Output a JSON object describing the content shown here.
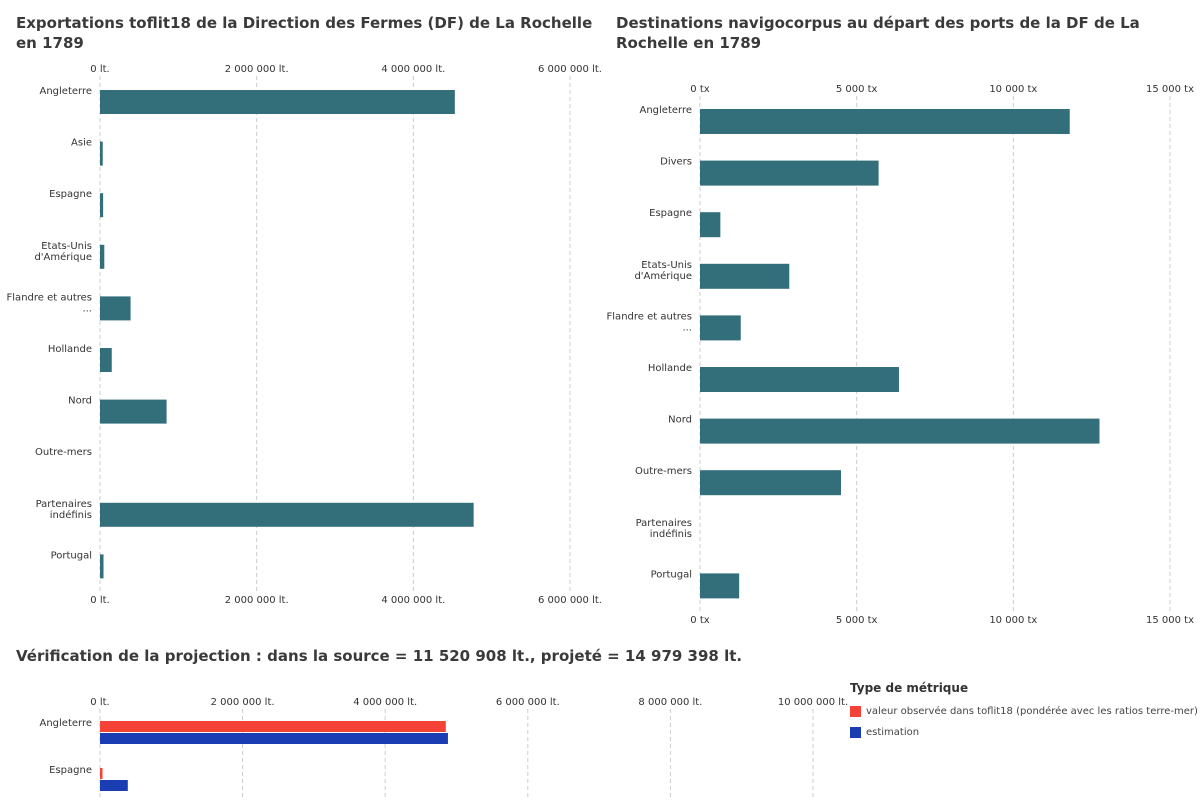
{
  "titles": {
    "chart1": "Exportations toflit18 de la Direction des Fermes (DF) de La Rochelle en 1789",
    "chart2": "Destinations navigocorpus au départ des ports de la DF de La Rochelle en 1789",
    "chart3": "Vérification de la projection : dans la source = 11 520 908 lt., projeté = 14 979 398 lt."
  },
  "colors": {
    "bar": "#336e7b",
    "observed": "#f44336",
    "estimation": "#1a3db3",
    "grid": "#cccccc"
  },
  "legend": {
    "title": "Type de métrique",
    "items": [
      {
        "label": "valeur observée dans toflit18 (pondérée avec les ratios terre-mer)",
        "color": "#f44336"
      },
      {
        "label": "estimation",
        "color": "#1a3db3"
      }
    ]
  },
  "chart_data": [
    {
      "type": "bar",
      "orientation": "horizontal",
      "title": "Exportations toflit18 de la Direction des Fermes (DF) de La Rochelle en 1789",
      "categories": [
        [
          "Angleterre"
        ],
        [
          "Asie"
        ],
        [
          "Espagne"
        ],
        [
          "Etats-Unis",
          "d'Amérique"
        ],
        [
          "Flandre et autres",
          "..."
        ],
        [
          "Hollande"
        ],
        [
          "Nord"
        ],
        [
          "Outre-mers"
        ],
        [
          "Partenaires",
          "indéfinis"
        ],
        [
          "Portugal"
        ]
      ],
      "values": [
        4530000,
        35000,
        40000,
        55000,
        390000,
        150000,
        850000,
        0,
        4770000,
        45000
      ],
      "xlim": [
        0,
        6000000
      ],
      "ticks": [
        {
          "value": 0,
          "label": "0 lt."
        },
        {
          "value": 2000000,
          "label": "2 000 000 lt."
        },
        {
          "value": 4000000,
          "label": "4 000 000 lt."
        },
        {
          "value": 6000000,
          "label": "6 000 000 lt."
        }
      ],
      "grid": true
    },
    {
      "type": "bar",
      "orientation": "horizontal",
      "title": "Destinations navigocorpus au départ des ports de la DF de La Rochelle en 1789",
      "categories": [
        [
          "Angleterre"
        ],
        [
          "Divers"
        ],
        [
          "Espagne"
        ],
        [
          "Etats-Unis",
          "d'Amérique"
        ],
        [
          "Flandre et autres",
          "..."
        ],
        [
          "Hollande"
        ],
        [
          "Nord"
        ],
        [
          "Outre-mers"
        ],
        [
          "Partenaires",
          "indéfinis"
        ],
        [
          "Portugal"
        ]
      ],
      "values": [
        11800,
        5700,
        650,
        2850,
        1300,
        6350,
        12750,
        4500,
        0,
        1250
      ],
      "xlim": [
        0,
        15000
      ],
      "ticks": [
        {
          "value": 0,
          "label": "0 tx"
        },
        {
          "value": 5000,
          "label": "5 000 tx"
        },
        {
          "value": 10000,
          "label": "10 000 tx"
        },
        {
          "value": 15000,
          "label": "15 000 tx"
        }
      ],
      "grid": true
    },
    {
      "type": "bar",
      "orientation": "horizontal",
      "grouped": true,
      "title": "Vérification de la projection : dans la source = 11 520 908 lt., projeté = 14 979 398 lt.",
      "categories": [
        [
          "Angleterre"
        ],
        [
          "Espagne"
        ]
      ],
      "series": [
        {
          "name": "valeur observée dans toflit18 (pondérée avec les ratios terre-mer)",
          "values": [
            4850000,
            35000
          ]
        },
        {
          "name": "estimation",
          "values": [
            4880000,
            390000
          ]
        }
      ],
      "xlim": [
        0,
        10000000
      ],
      "ticks": [
        {
          "value": 0,
          "label": "0 lt."
        },
        {
          "value": 2000000,
          "label": "2 000 000 lt."
        },
        {
          "value": 4000000,
          "label": "4 000 000 lt."
        },
        {
          "value": 6000000,
          "label": "6 000 000 lt."
        },
        {
          "value": 8000000,
          "label": "8 000 000 lt."
        },
        {
          "value": 10000000,
          "label": "10 000 000 lt."
        }
      ],
      "grid": true
    }
  ]
}
